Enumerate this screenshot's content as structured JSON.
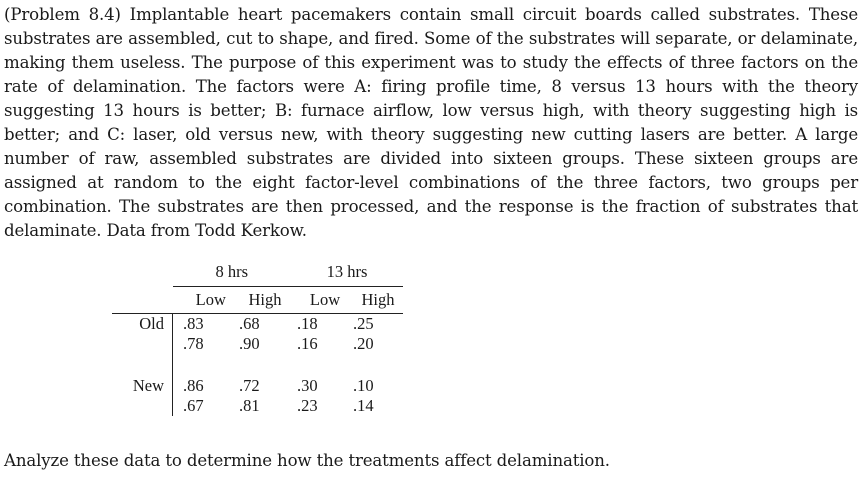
{
  "problem": {
    "text": "(Problem 8.4) Implantable heart pacemakers contain small circuit boards called substrates. These substrates are assembled, cut to shape, and fired. Some of the substrates will separate, or delaminate, making them useless. The purpose of this experiment was to study the effects of three factors on the rate of delamination. The factors were A: firing profile time, 8 versus 13 hours with the theory suggesting 13 hours is better; B: furnace airflow, low versus high, with theory suggesting high is better; and C: laser, old versus new, with theory suggesting new cutting lasers are better. A large number of raw, assembled substrates are divided into sixteen groups. These sixteen groups are assigned at random to the eight factor-level combinations of the three factors, two groups per combination. The substrates are then processed, and the response is the fraction of substrates that delaminate. Data from Todd Kerkow."
  },
  "table": {
    "time_levels": [
      "8 hrs",
      "13 hrs"
    ],
    "airflow_levels": [
      "Low",
      "High",
      "Low",
      "High"
    ],
    "rows": [
      {
        "label": "Old",
        "values": [
          [
            ".83",
            ".68",
            ".18",
            ".25"
          ],
          [
            ".78",
            ".90",
            ".16",
            ".20"
          ]
        ]
      },
      {
        "label": "New",
        "values": [
          [
            ".86",
            ".72",
            ".30",
            ".10"
          ],
          [
            ".67",
            ".81",
            ".23",
            ".14"
          ]
        ]
      }
    ]
  },
  "closing": {
    "text": "Analyze these data to determine how the treatments affect delamination."
  }
}
